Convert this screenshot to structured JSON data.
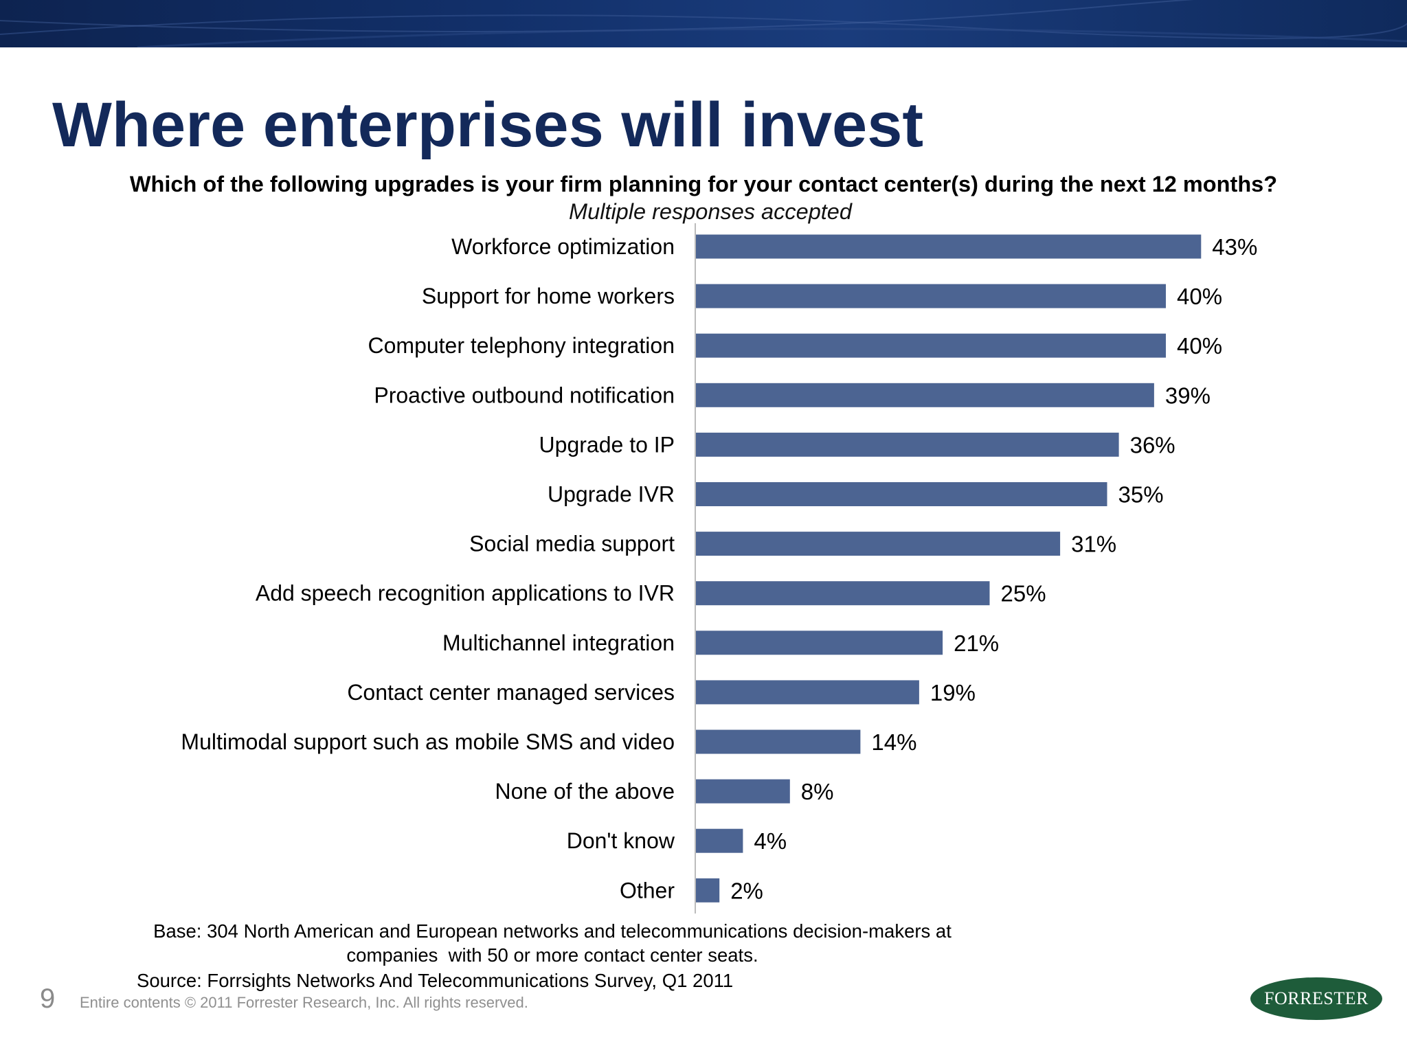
{
  "slide": {
    "title": "Where enterprises will invest",
    "question": "Which of the following upgrades is your firm planning for your contact center(s) during the next 12 months?",
    "question_note": "Multiple responses accepted",
    "base_note_lines": [
      "Base: 304 North American and European networks and telecommunications decision-makers at",
      "companies  with 50 or more contact center seats."
    ],
    "source": "Source: Forrsights Networks And Telecommunications Survey, Q1 2011",
    "page_number": "9",
    "copyright": "Entire contents © 2011 Forrester Research, Inc. All rights reserved.",
    "logo_text": "FORRESTER",
    "colors": {
      "title": "#13295a",
      "bar": "#4c6492",
      "banner": "#12306a",
      "logo": "#1e5c3a"
    }
  },
  "chart_data": {
    "type": "bar",
    "orientation": "horizontal",
    "categories": [
      "Workforce optimization",
      "Support for home workers",
      "Computer telephony integration",
      "Proactive outbound notification",
      "Upgrade to IP",
      "Upgrade IVR",
      "Social media support",
      "Add speech recognition applications to IVR",
      "Multichannel integration",
      "Contact center managed services",
      "Multimodal support such as mobile SMS and video",
      "None of the above",
      "Don't know",
      "Other"
    ],
    "values": [
      43,
      40,
      40,
      39,
      36,
      35,
      31,
      25,
      21,
      19,
      14,
      8,
      4,
      2
    ],
    "value_labels": [
      "43%",
      "40%",
      "40%",
      "39%",
      "36%",
      "35%",
      "31%",
      "25%",
      "21%",
      "19%",
      "14%",
      "8%",
      "4%",
      "2%"
    ],
    "unit": "%",
    "xlim": [
      0,
      45
    ],
    "grid": false,
    "legend": "none"
  }
}
